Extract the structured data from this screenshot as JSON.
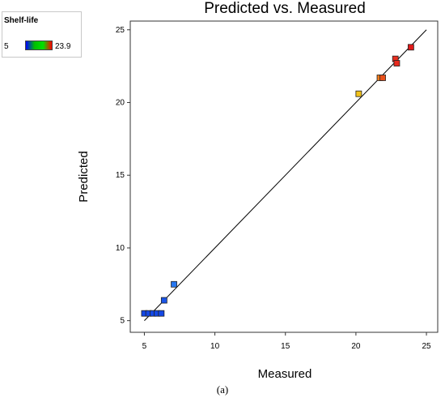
{
  "legend": {
    "title": "Shelf-life",
    "min_label": "5",
    "max_label": "23.9",
    "gradient_colors": [
      "#0000ff",
      "#00c000",
      "#00e000",
      "#ff0000"
    ]
  },
  "caption": "(a)",
  "chart_data": {
    "type": "scatter",
    "title": "Predicted vs. Measured",
    "xlabel": "Measured",
    "ylabel": "Predicted",
    "xlim": [
      4,
      25.8
    ],
    "ylim": [
      4.2,
      25.6
    ],
    "xticks": [
      5,
      10,
      15,
      20,
      25
    ],
    "yticks": [
      5,
      10,
      15,
      20,
      25
    ],
    "grid": false,
    "reference_line": [
      [
        5,
        5
      ],
      [
        25,
        25
      ]
    ],
    "colorbar": {
      "variable": "Shelf-life",
      "min": 5,
      "max": 23.9
    },
    "points": [
      {
        "x": 5.0,
        "y": 5.5,
        "color": "#1448e6"
      },
      {
        "x": 5.3,
        "y": 5.5,
        "color": "#1448e6"
      },
      {
        "x": 5.6,
        "y": 5.5,
        "color": "#1448e6"
      },
      {
        "x": 5.9,
        "y": 5.5,
        "color": "#1448e6"
      },
      {
        "x": 6.2,
        "y": 5.5,
        "color": "#1448e6"
      },
      {
        "x": 6.4,
        "y": 6.4,
        "color": "#1a55e8"
      },
      {
        "x": 7.1,
        "y": 7.5,
        "color": "#2677f0"
      },
      {
        "x": 20.2,
        "y": 20.6,
        "color": "#f2c21a"
      },
      {
        "x": 21.7,
        "y": 21.7,
        "color": "#f07a1a"
      },
      {
        "x": 21.9,
        "y": 21.7,
        "color": "#e8501a"
      },
      {
        "x": 22.8,
        "y": 23.0,
        "color": "#e83020"
      },
      {
        "x": 22.9,
        "y": 22.7,
        "color": "#e82a1e"
      },
      {
        "x": 23.9,
        "y": 23.8,
        "color": "#e01a1a"
      }
    ]
  }
}
